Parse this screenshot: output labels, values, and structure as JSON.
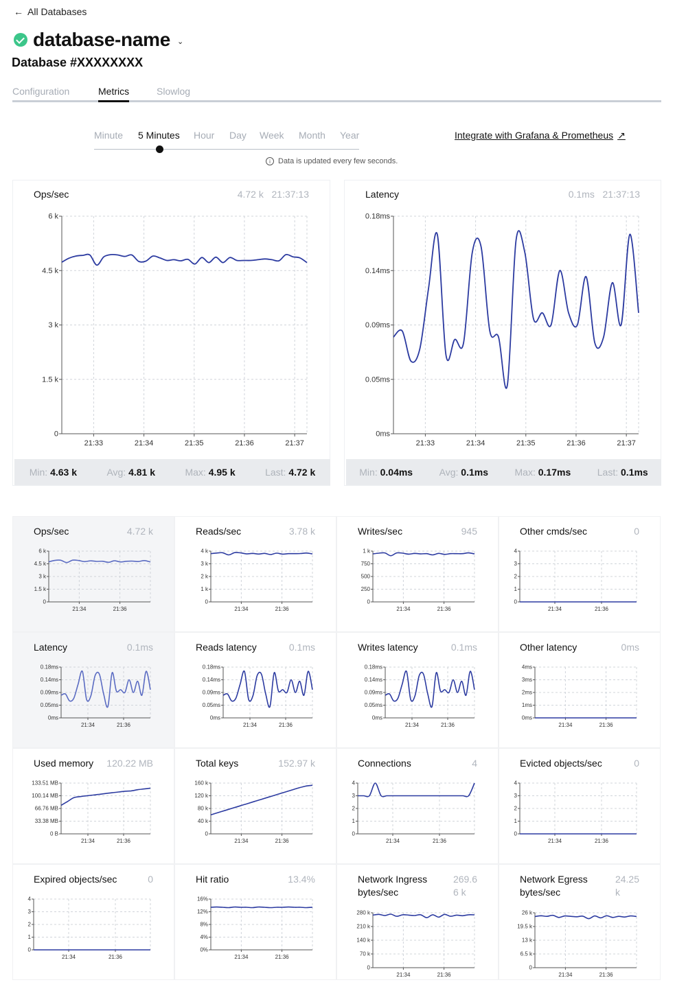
{
  "nav": {
    "back_label": "All Databases"
  },
  "header": {
    "db_name": "database-name",
    "db_id": "Database #XXXXXXXX"
  },
  "tabs": [
    {
      "label": "Configuration",
      "active": false
    },
    {
      "label": "Metrics",
      "active": true
    },
    {
      "label": "Slowlog",
      "active": false
    }
  ],
  "time_ranges": [
    {
      "label": "Minute",
      "active": false
    },
    {
      "label": "5 Minutes",
      "active": true
    },
    {
      "label": "Hour",
      "active": false
    },
    {
      "label": "Day",
      "active": false
    },
    {
      "label": "Week",
      "active": false
    },
    {
      "label": "Month",
      "active": false
    },
    {
      "label": "Year",
      "active": false
    }
  ],
  "info_text": "Data is updated every few seconds.",
  "grafana_link": "Integrate with Grafana & Prometheus",
  "colors": {
    "line": "#2b3aa0",
    "line_faded": "#5a6bc2",
    "grid": "#d0d4da"
  },
  "x_ticks_main": [
    "21:33",
    "21:34",
    "21:35",
    "21:36",
    "21:37"
  ],
  "x_ticks_small": [
    "21:34",
    "21:36"
  ],
  "main_charts": [
    {
      "title": "Ops/sec",
      "current": "4.72 k",
      "time": "21:37:13",
      "min": "4.63 k",
      "avg": "4.81 k",
      "max": "4.95 k",
      "last": "4.72 k",
      "stat_labels": {
        "min": "Min:",
        "avg": "Avg:",
        "max": "Max:",
        "last": "Last:"
      },
      "chart_data": {
        "type": "line",
        "yticks": [
          "6 k",
          "4.5 k",
          "3 k",
          "1.5 k",
          "0"
        ],
        "ylim": [
          0,
          6000
        ],
        "values": [
          4730,
          4840,
          4900,
          4920,
          4930,
          4650,
          4880,
          4940,
          4930,
          4890,
          4930,
          4750,
          4760,
          4900,
          4850,
          4780,
          4800,
          4770,
          4810,
          4680,
          4860,
          4720,
          4870,
          4720,
          4860,
          4780,
          4780,
          4780,
          4800,
          4820,
          4800,
          4770,
          4940,
          4880,
          4850,
          4720
        ]
      }
    },
    {
      "title": "Latency",
      "current": "0.1ms",
      "time": "21:37:13",
      "min": "0.04ms",
      "avg": "0.1ms",
      "max": "0.17ms",
      "last": "0.1ms",
      "stat_labels": {
        "min": "Min:",
        "avg": "Avg:",
        "max": "Max:",
        "last": "Last:"
      },
      "chart_data": {
        "type": "line",
        "yticks": [
          "0.18ms",
          "0.14ms",
          "0.09ms",
          "0.05ms",
          "0ms"
        ],
        "ylim": [
          0,
          0.18
        ],
        "values": [
          0.08,
          0.085,
          0.06,
          0.07,
          0.12,
          0.165,
          0.065,
          0.078,
          0.075,
          0.15,
          0.155,
          0.085,
          0.08,
          0.04,
          0.16,
          0.15,
          0.095,
          0.1,
          0.09,
          0.135,
          0.1,
          0.09,
          0.13,
          0.075,
          0.08,
          0.125,
          0.09,
          0.165,
          0.1
        ]
      }
    }
  ],
  "small_charts": [
    {
      "title": "Ops/sec",
      "value": "4.72 k",
      "shaded": true,
      "yticks": [
        "6 k",
        "4.5 k",
        "3 k",
        "1.5 k",
        "0"
      ],
      "ylim": [
        0,
        6000
      ],
      "values": [
        4730,
        4900,
        4920,
        4650,
        4930,
        4890,
        4760,
        4850,
        4780,
        4800,
        4680,
        4860,
        4720,
        4800,
        4820,
        4770,
        4880,
        4720
      ]
    },
    {
      "title": "Reads/sec",
      "value": "3.78 k",
      "shaded": false,
      "yticks": [
        "4 k",
        "3 k",
        "2 k",
        "1 k",
        "0"
      ],
      "ylim": [
        0,
        4000
      ],
      "values": [
        3800,
        3850,
        3870,
        3700,
        3880,
        3860,
        3780,
        3820,
        3770,
        3820,
        3730,
        3840,
        3760,
        3800,
        3800,
        3810,
        3850,
        3780
      ]
    },
    {
      "title": "Writes/sec",
      "value": "945",
      "shaded": false,
      "yticks": [
        "1 k",
        "750",
        "500",
        "250",
        "0"
      ],
      "ylim": [
        0,
        1000
      ],
      "values": [
        945,
        960,
        965,
        910,
        965,
        960,
        940,
        955,
        945,
        950,
        925,
        955,
        935,
        950,
        950,
        950,
        965,
        945
      ]
    },
    {
      "title": "Other cmds/sec",
      "value": "0",
      "shaded": false,
      "yticks": [
        "4",
        "3",
        "2",
        "1",
        "0"
      ],
      "ylim": [
        0,
        4
      ],
      "values": [
        0,
        0,
        0,
        0,
        0,
        0,
        0,
        0,
        0,
        0,
        0,
        0,
        0,
        0,
        0,
        0,
        0,
        0
      ]
    },
    {
      "title": "Latency",
      "value": "0.1ms",
      "shaded": true,
      "yticks": [
        "0.18ms",
        "0.14ms",
        "0.09ms",
        "0.05ms",
        "0ms"
      ],
      "ylim": [
        0,
        0.18
      ],
      "values": [
        0.08,
        0.085,
        0.06,
        0.07,
        0.12,
        0.165,
        0.065,
        0.078,
        0.15,
        0.155,
        0.085,
        0.04,
        0.16,
        0.095,
        0.1,
        0.09,
        0.135,
        0.09,
        0.13,
        0.08,
        0.165,
        0.1
      ]
    },
    {
      "title": "Reads latency",
      "value": "0.1ms",
      "shaded": false,
      "yticks": [
        "0.18ms",
        "0.14ms",
        "0.09ms",
        "0.05ms",
        "0ms"
      ],
      "ylim": [
        0,
        0.18
      ],
      "values": [
        0.08,
        0.085,
        0.06,
        0.07,
        0.12,
        0.165,
        0.065,
        0.078,
        0.15,
        0.155,
        0.085,
        0.04,
        0.16,
        0.095,
        0.1,
        0.09,
        0.135,
        0.09,
        0.13,
        0.08,
        0.165,
        0.1
      ]
    },
    {
      "title": "Writes latency",
      "value": "0.1ms",
      "shaded": false,
      "yticks": [
        "0.18ms",
        "0.14ms",
        "0.09ms",
        "0.05ms",
        "0ms"
      ],
      "ylim": [
        0,
        0.18
      ],
      "values": [
        0.08,
        0.085,
        0.06,
        0.07,
        0.12,
        0.165,
        0.065,
        0.078,
        0.15,
        0.155,
        0.085,
        0.04,
        0.16,
        0.095,
        0.1,
        0.09,
        0.135,
        0.09,
        0.13,
        0.08,
        0.165,
        0.1
      ]
    },
    {
      "title": "Other latency",
      "value": "0ms",
      "shaded": false,
      "yticks": [
        "4ms",
        "3ms",
        "2ms",
        "1ms",
        "0ms"
      ],
      "ylim": [
        0,
        4
      ],
      "values": [
        0,
        0,
        0,
        0,
        0,
        0,
        0,
        0,
        0,
        0,
        0,
        0,
        0,
        0,
        0,
        0,
        0,
        0
      ]
    },
    {
      "title": "Used memory",
      "value": "120.22 MB",
      "shaded": false,
      "yticks": [
        "133.51 MB",
        "100.14 MB",
        "66.76 MB",
        "33.38 MB",
        "0 B"
      ],
      "ylim": [
        0,
        133.51
      ],
      "values": [
        75,
        85,
        95,
        98,
        100,
        102,
        104,
        106,
        108,
        110,
        112,
        113,
        116,
        118,
        120.22
      ]
    },
    {
      "title": "Total keys",
      "value": "152.97 k",
      "shaded": false,
      "yticks": [
        "160 k",
        "120 k",
        "80 k",
        "40 k",
        "0"
      ],
      "ylim": [
        0,
        160
      ],
      "values": [
        60,
        67,
        74,
        81,
        88,
        95,
        102,
        109,
        116,
        123,
        130,
        137,
        144,
        150,
        153
      ]
    },
    {
      "title": "Connections",
      "value": "4",
      "shaded": false,
      "yticks": [
        "4",
        "3",
        "2",
        "1",
        "0"
      ],
      "ylim": [
        0,
        4
      ],
      "values": [
        3,
        3,
        3,
        4,
        3,
        3,
        3,
        3,
        3,
        3,
        3,
        3,
        3,
        3,
        3,
        3,
        3,
        3,
        3,
        3,
        4
      ]
    },
    {
      "title": "Evicted objects/sec",
      "value": "0",
      "shaded": false,
      "yticks": [
        "4",
        "3",
        "2",
        "1",
        "0"
      ],
      "ylim": [
        0,
        4
      ],
      "values": [
        0,
        0,
        0,
        0,
        0,
        0,
        0,
        0,
        0,
        0,
        0,
        0,
        0,
        0,
        0,
        0,
        0,
        0
      ]
    },
    {
      "title": "Expired objects/sec",
      "value": "0",
      "shaded": false,
      "yticks": [
        "4",
        "3",
        "2",
        "1",
        "0"
      ],
      "ylim": [
        0,
        4
      ],
      "values": [
        0,
        0,
        0,
        0,
        0,
        0,
        0,
        0,
        0,
        0,
        0,
        0,
        0,
        0,
        0,
        0,
        0,
        0
      ]
    },
    {
      "title": "Hit ratio",
      "value": "13.4%",
      "shaded": false,
      "yticks": [
        "16%",
        "12%",
        "8%",
        "4%",
        "0%"
      ],
      "ylim": [
        0,
        16
      ],
      "values": [
        13.4,
        13.5,
        13.4,
        13.3,
        13.5,
        13.4,
        13.4,
        13.3,
        13.5,
        13.4,
        13.3,
        13.4,
        13.4,
        13.5,
        13.4,
        13.4,
        13.3,
        13.4
      ]
    },
    {
      "title": "Network Ingress\nbytes/sec",
      "value": "269.6\n6 k",
      "shaded": false,
      "yticks": [
        "280 k",
        "210 k",
        "140 k",
        "70 k",
        "0"
      ],
      "ylim": [
        0,
        280
      ],
      "values": [
        268,
        272,
        266,
        273,
        262,
        270,
        268,
        266,
        270,
        255,
        270,
        258,
        272,
        262,
        268,
        265,
        270,
        269.66
      ]
    },
    {
      "title": "Network Egress\nbytes/sec",
      "value": "24.25\nk",
      "shaded": false,
      "yticks": [
        "26 k",
        "19.5 k",
        "13 k",
        "6.5 k",
        "0"
      ],
      "ylim": [
        0,
        26
      ],
      "values": [
        24.2,
        24.6,
        24.3,
        24.8,
        23.8,
        24.5,
        24.3,
        24.1,
        24.4,
        23.2,
        24.5,
        23.6,
        24.6,
        23.8,
        24.3,
        24.0,
        24.5,
        24.25
      ]
    }
  ]
}
